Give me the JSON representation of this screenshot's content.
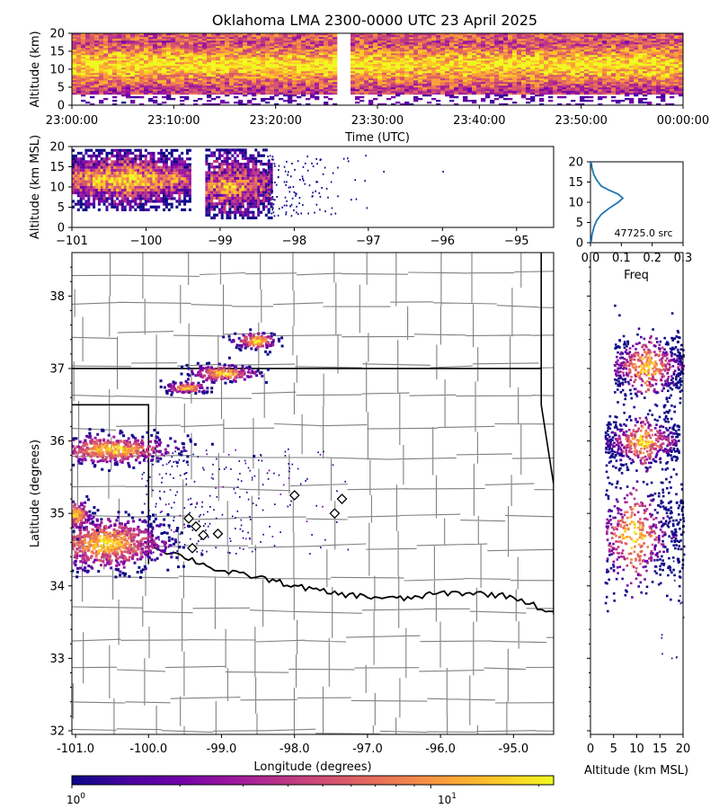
{
  "figure": {
    "title": "Oklahoma LMA 2300-0000 UTC 23 April 2025"
  },
  "colors": {
    "plasma": [
      "#0d0887",
      "#46039f",
      "#7201a8",
      "#9c179e",
      "#bd3786",
      "#d8576b",
      "#ed7953",
      "#fb9f3a",
      "#fdca26",
      "#f0f921"
    ],
    "axis": "#000000",
    "county_line": "#808080",
    "state_line": "#000000",
    "histogram_line": "#1f77b4"
  },
  "chart_data": [
    {
      "id": "time-height",
      "type": "heatmap",
      "xlabel": "Time (UTC)",
      "ylabel": "Altitude (km)",
      "xlim": [
        "23:00:00",
        "00:00:00"
      ],
      "ylim": [
        0,
        20
      ],
      "xticks": [
        "23:00:00",
        "23:10:00",
        "23:20:00",
        "23:30:00",
        "23:40:00",
        "23:50:00",
        "00:00:00"
      ],
      "yticks": [
        "0",
        "5",
        "10",
        "15",
        "20"
      ],
      "core_altitude_km": [
        4,
        18
      ],
      "note_gap_minutes": [
        26,
        27
      ]
    },
    {
      "id": "lon-alt",
      "type": "heatmap",
      "xlabel": "",
      "ylabel": "Altitude (km MSL)",
      "xlim": [
        -101,
        -94.5
      ],
      "ylim": [
        0,
        20
      ],
      "xticks": [
        "−101",
        "−100",
        "−99",
        "−98",
        "−97",
        "−96",
        "−95"
      ],
      "yticks": [
        "0",
        "5",
        "10",
        "15",
        "20"
      ],
      "clusters": [
        {
          "lon": [
            -101.0,
            -99.4
          ],
          "alt": [
            4,
            19
          ]
        },
        {
          "lon": [
            -99.2,
            -98.3
          ],
          "alt": [
            2,
            19
          ]
        }
      ]
    },
    {
      "id": "alt-histogram",
      "type": "line",
      "xlabel": "Freq",
      "ylabel": "",
      "xlim": [
        0,
        0.3
      ],
      "ylim": [
        0,
        20
      ],
      "xticks": [
        "0.0",
        "0.1",
        "0.2",
        "0.3"
      ],
      "yticks": [
        "0",
        "5",
        "10",
        "15",
        "20"
      ],
      "annotation": "47725.0 src",
      "series": [
        {
          "x": [
            0.002,
            0.005,
            0.012,
            0.02,
            0.035,
            0.06,
            0.09,
            0.105,
            0.09,
            0.06,
            0.035,
            0.02,
            0.01,
            0.005,
            0.002
          ],
          "y": [
            0,
            2,
            4,
            5.5,
            7,
            8.5,
            10,
            11,
            12,
            13,
            14,
            15.5,
            17,
            18.5,
            20
          ]
        }
      ]
    },
    {
      "id": "plan-view",
      "type": "scatter",
      "xlabel": "Longitude (degrees)",
      "ylabel": "Latitude (degrees)",
      "xlim": [
        -101.05,
        -94.45
      ],
      "ylim": [
        31.95,
        38.6
      ],
      "xticks": [
        "-101.0",
        "-100.0",
        "-99.0",
        "-98.0",
        "-97.0",
        "-96.0",
        "-95.0"
      ],
      "yticks": [
        "32",
        "33",
        "34",
        "35",
        "36",
        "37",
        "38"
      ],
      "clusters": [
        {
          "lon": -99.0,
          "lat": 36.95,
          "spread": [
            0.25,
            0.06
          ]
        },
        {
          "lon": -98.55,
          "lat": 37.4,
          "spread": [
            0.15,
            0.06
          ]
        },
        {
          "lon": -99.5,
          "lat": 36.75,
          "spread": [
            0.15,
            0.04
          ]
        },
        {
          "lon": -100.5,
          "lat": 35.9,
          "spread": [
            0.45,
            0.1
          ]
        },
        {
          "lon": -100.6,
          "lat": 34.6,
          "spread": [
            0.45,
            0.18
          ]
        },
        {
          "lon": -101.0,
          "lat": 35.0,
          "spread": [
            0.1,
            0.1
          ]
        }
      ],
      "stations": [
        {
          "lon": -99.45,
          "lat": 34.93
        },
        {
          "lon": -99.35,
          "lat": 34.82
        },
        {
          "lon": -99.25,
          "lat": 34.7
        },
        {
          "lon": -99.05,
          "lat": 34.72
        },
        {
          "lon": -99.4,
          "lat": 34.52
        },
        {
          "lon": -98.0,
          "lat": 35.25
        },
        {
          "lon": -97.45,
          "lat": 35.0
        },
        {
          "lon": -97.35,
          "lat": 35.2
        }
      ]
    },
    {
      "id": "alt-lat",
      "type": "heatmap",
      "xlabel": "Altitude (km MSL)",
      "ylabel": "",
      "xlim": [
        0,
        20
      ],
      "ylim": [
        31.95,
        38.6
      ],
      "xticks": [
        "0",
        "5",
        "10",
        "15",
        "20"
      ]
    }
  ],
  "colorbar": {
    "min_label": "10",
    "min_exp": "0",
    "max_label": "10",
    "max_exp": "1"
  }
}
